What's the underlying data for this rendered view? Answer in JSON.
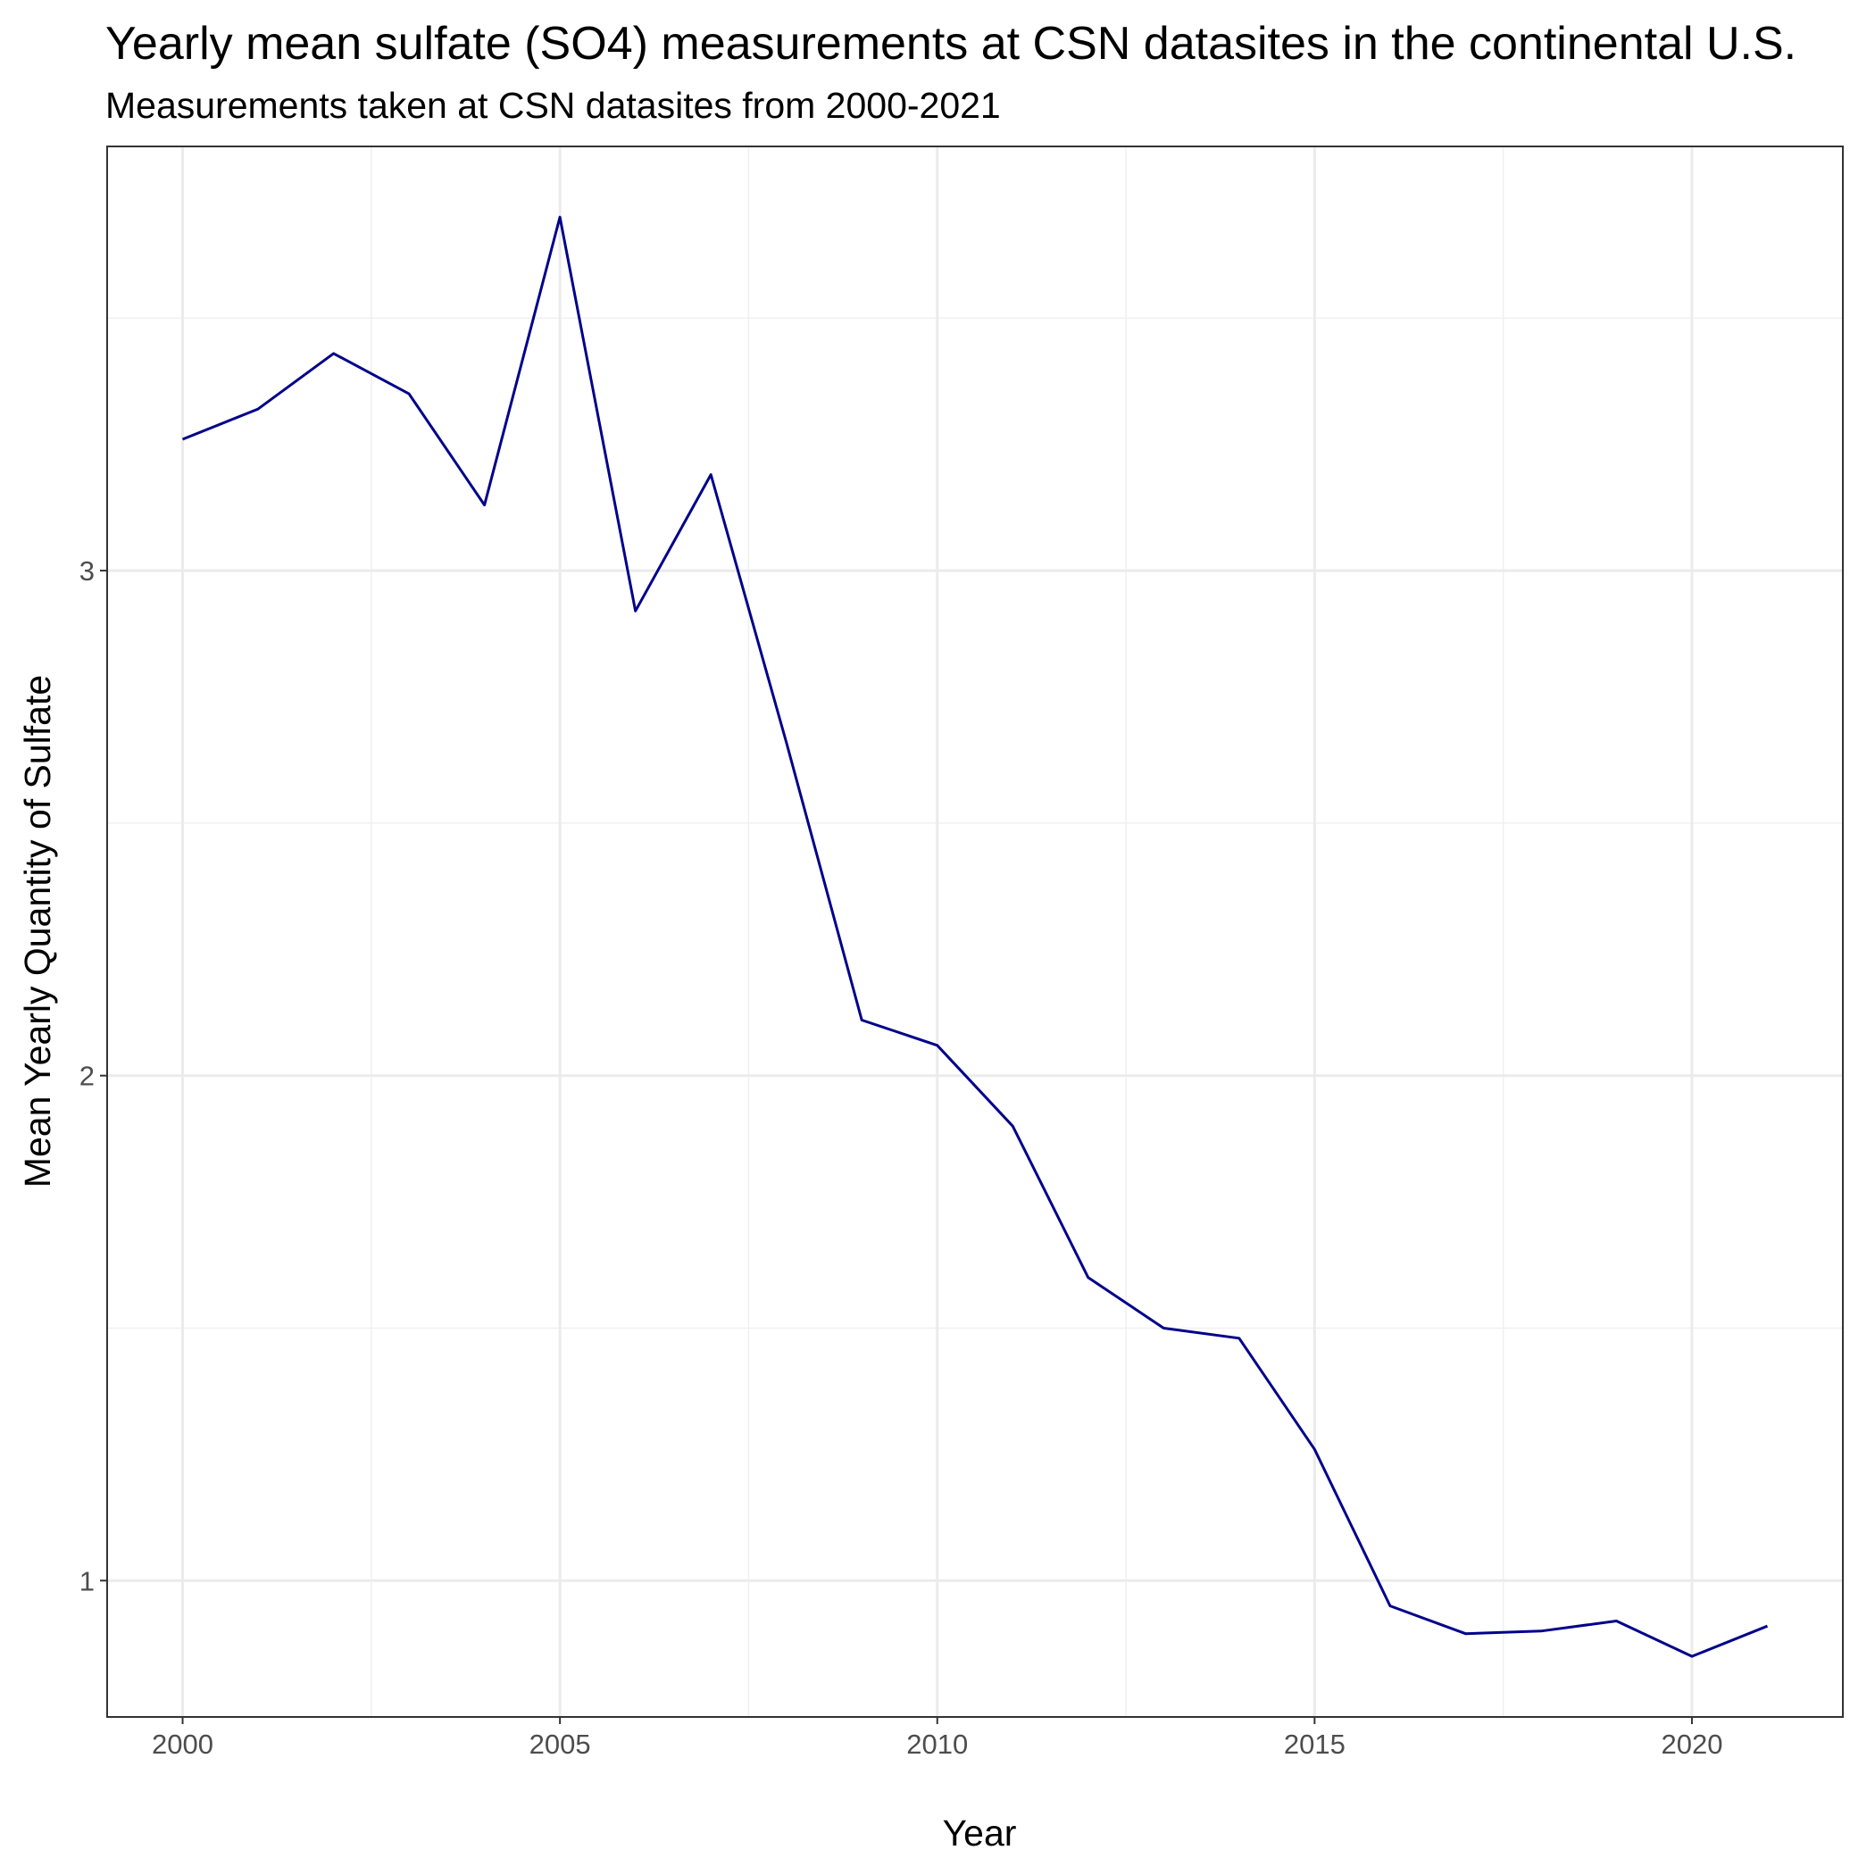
{
  "chart_data": {
    "type": "line",
    "title": "Yearly mean sulfate (SO4) measurements at CSN datasites in the continental U.S.",
    "subtitle": "Measurements taken at CSN datasites from 2000-2021",
    "xlabel": "Year",
    "ylabel": "Mean Yearly Quantity of Sulfate",
    "x": [
      2000,
      2001,
      2002,
      2003,
      2004,
      2005,
      2006,
      2007,
      2008,
      2009,
      2010,
      2011,
      2012,
      2013,
      2014,
      2015,
      2016,
      2017,
      2018,
      2019,
      2020,
      2021
    ],
    "series": [
      {
        "values": [
          3.26,
          3.32,
          3.43,
          3.35,
          3.13,
          3.7,
          2.92,
          3.19,
          2.66,
          2.11,
          2.06,
          1.9,
          1.6,
          1.5,
          1.48,
          1.26,
          0.95,
          0.895,
          0.9,
          0.92,
          0.85,
          0.91
        ],
        "color": "#00008B"
      }
    ],
    "xticks": [
      2000,
      2005,
      2010,
      2015,
      2020
    ],
    "xtick_labels": [
      "2000",
      "2005",
      "2010",
      "2015",
      "2020"
    ],
    "yticks": [
      1,
      2,
      3
    ],
    "ytick_labels": [
      "1",
      "2",
      "3"
    ],
    "xlim": [
      1999,
      2022
    ],
    "ylim": [
      0.73,
      3.84
    ],
    "grid": true,
    "legend": "none"
  }
}
